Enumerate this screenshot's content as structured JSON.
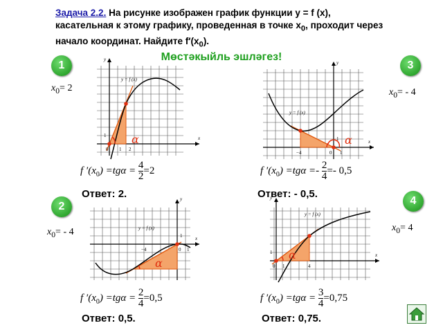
{
  "header": {
    "task_label": "Задача 2.2.",
    "line1": " На рисунке изображен график функции y = f (x),",
    "line2": "касательная к этому графику, проведенная в точке x",
    "line2_sub": "0",
    "line2_end": ", проходит через",
    "line3": "начало координат. Найдите f′(x",
    "line3_sub": "0",
    "line3_end": ")."
  },
  "subtitle": "Мөстәкыйль эшләгез!",
  "examples": [
    {
      "number": "1",
      "x0_label": "x",
      "x0_sub": "0",
      "x0_value": "= 2",
      "formula_left": "f ′(x",
      "formula_sub": "0",
      "formula_mid": ") =tgα =",
      "num": "4",
      "den": "2",
      "result": "=2",
      "answer": "Ответ: 2.",
      "graph_fn": "y = f (x)",
      "axis_x": "x",
      "axis_y": "y",
      "tick_a": "1",
      "tick_b": "2",
      "origin": "0",
      "tick_y": "1"
    },
    {
      "number": "3",
      "x0_label": "x",
      "x0_sub": "0",
      "x0_value": "= - 4",
      "formula_left": "f ′(x",
      "formula_sub": "0",
      "formula_mid": ") =tgα =-",
      "num": "2",
      "den": "4",
      "result": "=- 0,5",
      "answer": "Ответ: - 0,5.",
      "graph_fn": "y = f (x)",
      "axis_x": "x",
      "axis_y": "y",
      "tick_a": "−4",
      "tick_b": "1",
      "origin": "0",
      "tick_y": "1"
    },
    {
      "number": "2",
      "x0_label": "x",
      "x0_sub": "0",
      "x0_value": "= - 4",
      "formula_left": "f ′(x",
      "formula_sub": "0",
      "formula_mid": ") =tgα =",
      "num": "2",
      "den": "4",
      "result": "=0,5",
      "answer": "Ответ: 0,5.",
      "graph_fn": "y = f (x)",
      "axis_x": "x",
      "axis_y": "y",
      "tick_a": "−4",
      "tick_b": "1",
      "origin": "0",
      "tick_y": "1"
    },
    {
      "number": "4",
      "x0_label": "x",
      "x0_sub": "0",
      "x0_value": "= 4",
      "formula_left": "f ′(x",
      "formula_sub": "0",
      "formula_mid": ") =tgα =",
      "num": "3",
      "den": "4",
      "result": "=0,75",
      "answer": "Ответ: 0,75.",
      "graph_fn": "y = f (x)",
      "axis_x": "x",
      "axis_y": "y",
      "tick_a": "1",
      "tick_b": "4",
      "origin": "0",
      "tick_y": "1"
    }
  ],
  "alpha": "α",
  "colors": {
    "accent_green": "#1fa01f",
    "triangle_fill": "#f4a46a",
    "triangle_stroke": "#e05a10",
    "point": "#e03010"
  },
  "nav": {
    "home_icon": "home-icon"
  }
}
